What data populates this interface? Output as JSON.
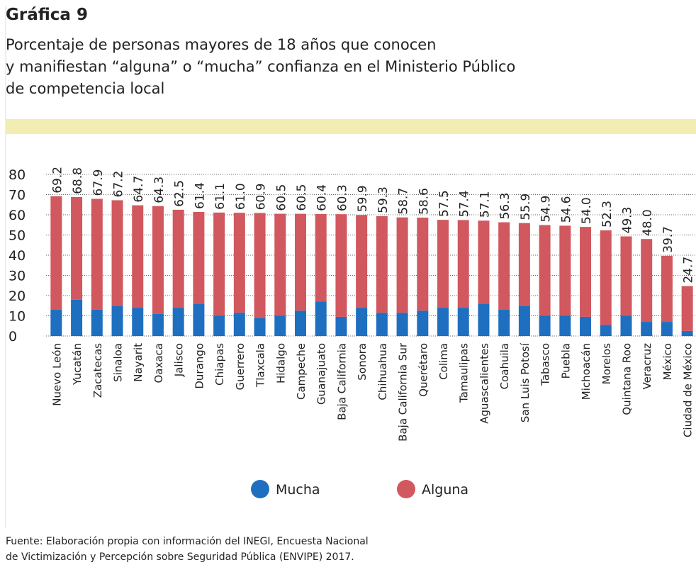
{
  "chart_data": {
    "type": "stacked_bar",
    "label": "Gráfica 9",
    "title": [
      "Porcentaje de personas mayores de 18 años que conocen",
      "y manifiestan “alguna” o “mucha” confianza en el Ministerio Público",
      "de competencia local"
    ],
    "categories": [
      "Nuevo León",
      "Yucatán",
      "Zacatecas",
      "Sinaloa",
      "Nayarit",
      "Oaxaca",
      "Jalisco",
      "Durango",
      "Chiapas",
      "Guerrero",
      "Tlaxcala",
      "Hidalgo",
      "Campeche",
      "Guanajuato",
      "Baja California",
      "Sonora",
      "Chihuahua",
      "Baja California Sur",
      "Querétaro",
      "Colima",
      "Tamaulipas",
      "Aguascalientes",
      "Coahuila",
      "San Luis Potosí",
      "Tabasco",
      "Puebla",
      "Michoacán",
      "Morelos",
      "Quintana Roo",
      "Veracruz",
      "México",
      "Ciudad de México"
    ],
    "series": [
      {
        "name": "Mucha",
        "color": "#1f6fc0",
        "values": [
          13,
          18,
          13,
          15,
          14,
          11,
          14,
          16,
          10,
          11.5,
          9,
          10,
          12.5,
          17,
          9.5,
          14,
          11.5,
          11.5,
          12.5,
          14,
          14,
          16,
          13,
          15,
          10,
          10,
          9.5,
          5.5,
          10,
          7,
          7,
          2.5
        ]
      },
      {
        "name": "Alguna",
        "color": "#d1585f",
        "values": [
          56.2,
          50.8,
          54.9,
          52.2,
          50.7,
          53.3,
          48.5,
          45.4,
          51.1,
          49.5,
          51.9,
          50.5,
          48,
          43.4,
          50.8,
          45.9,
          47.8,
          47.2,
          46.1,
          43.5,
          43.4,
          41.1,
          43.3,
          40.9,
          44.9,
          44.6,
          44.5,
          46.8,
          39.3,
          41,
          32.7,
          22.2
        ]
      }
    ],
    "total_labels": [
      "69.2",
      "68.8",
      "67.9",
      "67.2",
      "64.7",
      "64.3",
      "62.5",
      "61.4",
      "61.1",
      "61.0",
      "60.9",
      "60.5",
      "60.5",
      "60.4",
      "60.3",
      "59.9",
      "59.3",
      "58.7",
      "58.6",
      "57.5",
      "57.4",
      "57.1",
      "56.3",
      "55.9",
      "54.9",
      "54.6",
      "54.0",
      "52.3",
      "49.3",
      "48.0",
      "39.7",
      "24.7"
    ],
    "ylim": [
      0,
      80
    ],
    "yticks": [
      0,
      10,
      20,
      30,
      40,
      50,
      60,
      70,
      80
    ],
    "grid": true,
    "source": [
      "Fuente: Elaboración propia con información del INEGI, Encuesta Nacional",
      "de Victimización y Percepción sobre Seguridad Pública (ENVIPE) 2017."
    ]
  }
}
